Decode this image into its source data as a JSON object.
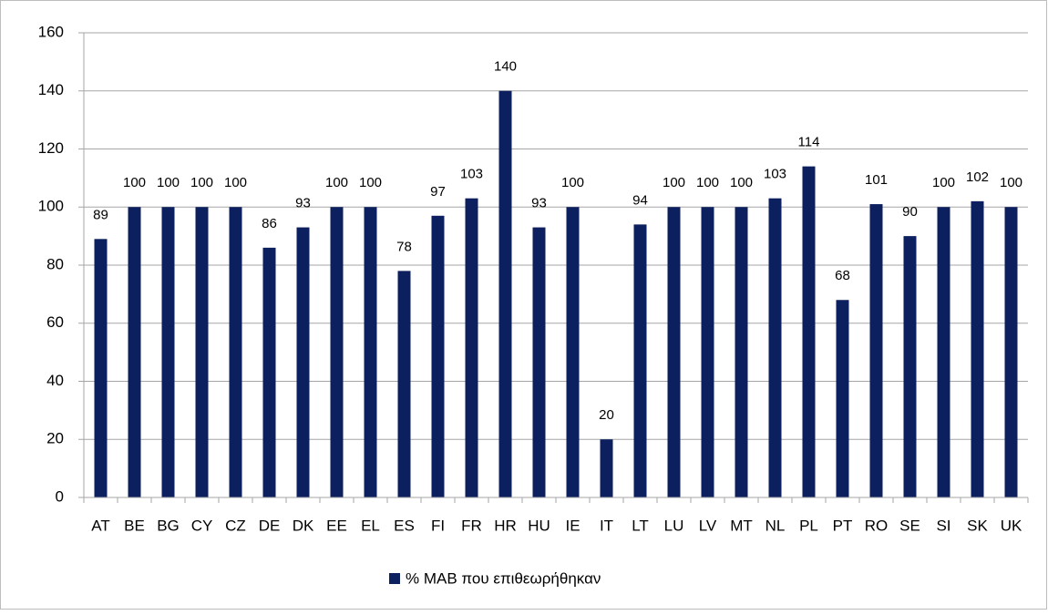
{
  "chart_data": {
    "type": "bar",
    "categories": [
      "AT",
      "BE",
      "BG",
      "CY",
      "CZ",
      "DE",
      "DK",
      "EE",
      "EL",
      "ES",
      "FI",
      "FR",
      "HR",
      "HU",
      "IE",
      "IT",
      "LT",
      "LU",
      "LV",
      "MT",
      "NL",
      "PL",
      "PT",
      "RO",
      "SE",
      "SI",
      "SK",
      "UK"
    ],
    "series": [
      {
        "name": "% MAB που επιθεωρήθηκαν",
        "color": "#0c1f5e",
        "values": [
          89,
          100,
          100,
          100,
          100,
          86,
          93,
          100,
          100,
          78,
          97,
          103,
          140,
          93,
          100,
          20,
          94,
          100,
          100,
          100,
          103,
          114,
          68,
          101,
          90,
          100,
          102,
          100
        ]
      }
    ],
    "ylim": [
      0,
      160
    ],
    "yticks": [
      0,
      20,
      40,
      60,
      80,
      100,
      120,
      140,
      160
    ],
    "grid": true,
    "legend": "bottom"
  }
}
